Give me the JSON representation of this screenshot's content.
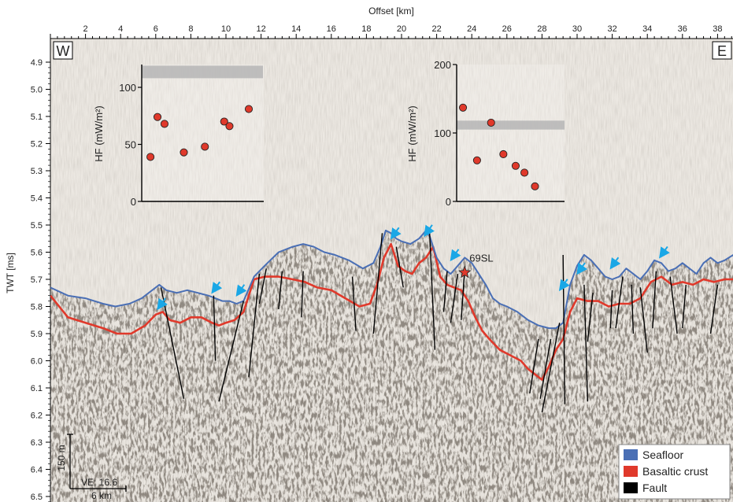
{
  "chart_data": [
    {
      "type": "line",
      "title": "",
      "xlabel": "Offset [km]",
      "ylabel": "TWT [ms]",
      "xlim": [
        0,
        38.9
      ],
      "ylim": [
        4.85,
        6.55
      ],
      "y_inverted": true,
      "x_ticks": [
        2,
        4,
        6,
        8,
        10,
        12,
        14,
        16,
        18,
        20,
        22,
        24,
        26,
        28,
        30,
        32,
        34,
        36,
        38
      ],
      "y_ticks": [
        "4.9",
        "5.0",
        "5.1",
        "5.2",
        "5.3",
        "5.4",
        "5.5",
        "5.6",
        "5.7",
        "5.8",
        "5.9",
        "6.0",
        "6.1",
        "6.2",
        "6.3",
        "6.4",
        "6.5"
      ],
      "corner_labels": {
        "west": "W",
        "east": "E"
      },
      "legend": {
        "position": "bottom-right",
        "entries": [
          {
            "label": "Seafloor",
            "color": "#4a6fb5"
          },
          {
            "label": "Basaltic crust",
            "color": "#e0392b"
          },
          {
            "label": "Fault",
            "color": "#000000"
          }
        ]
      },
      "series": [
        {
          "name": "Seafloor",
          "color": "#4a6fb5",
          "x": [
            0,
            1,
            2,
            3,
            3.7,
            4.5,
            5.2,
            5.8,
            6.2,
            6.6,
            7.2,
            7.8,
            8.4,
            9.0,
            9.4,
            9.8,
            10.2,
            10.6,
            11.0,
            11.6,
            12.2,
            13.0,
            13.8,
            14.4,
            15.0,
            15.6,
            16.2,
            17.0,
            17.8,
            18.4,
            18.8,
            19.1,
            19.4,
            19.7,
            20.0,
            20.5,
            21.0,
            21.4,
            21.6,
            22.0,
            22.4,
            22.8,
            23.2,
            23.6,
            24.0,
            24.4,
            24.8,
            25.2,
            25.6,
            26.0,
            26.6,
            27.2,
            27.8,
            28.4,
            28.8,
            29.2,
            29.6,
            30.0,
            30.4,
            30.8,
            31.2,
            31.6,
            32.0,
            32.4,
            32.8,
            33.2,
            33.6,
            34.0,
            34.4,
            34.8,
            35.2,
            35.6,
            36.0,
            36.4,
            36.8,
            37.2,
            37.6,
            38.0,
            38.4,
            38.9
          ],
          "y": [
            5.73,
            5.76,
            5.77,
            5.79,
            5.8,
            5.79,
            5.77,
            5.74,
            5.72,
            5.74,
            5.75,
            5.74,
            5.75,
            5.76,
            5.77,
            5.78,
            5.78,
            5.79,
            5.78,
            5.69,
            5.65,
            5.6,
            5.58,
            5.57,
            5.58,
            5.6,
            5.61,
            5.63,
            5.66,
            5.64,
            5.58,
            5.52,
            5.53,
            5.55,
            5.56,
            5.57,
            5.55,
            5.52,
            5.54,
            5.62,
            5.66,
            5.68,
            5.65,
            5.62,
            5.64,
            5.68,
            5.72,
            5.77,
            5.79,
            5.8,
            5.82,
            5.85,
            5.87,
            5.88,
            5.88,
            5.86,
            5.72,
            5.65,
            5.61,
            5.63,
            5.66,
            5.69,
            5.7,
            5.69,
            5.66,
            5.68,
            5.7,
            5.67,
            5.63,
            5.64,
            5.67,
            5.66,
            5.64,
            5.66,
            5.68,
            5.64,
            5.62,
            5.64,
            5.63,
            5.61
          ]
        },
        {
          "name": "Basaltic crust",
          "color": "#e0392b",
          "x": [
            0,
            1,
            2,
            3,
            3.8,
            4.6,
            5.4,
            6.0,
            6.4,
            6.8,
            7.4,
            8.0,
            8.6,
            9.2,
            9.6,
            10.0,
            10.5,
            11.0,
            11.6,
            12.2,
            13.0,
            13.8,
            14.5,
            15.2,
            16.0,
            16.8,
            17.6,
            18.2,
            18.6,
            19.0,
            19.4,
            19.8,
            20.2,
            20.6,
            21.0,
            21.4,
            21.8,
            22.2,
            22.6,
            23.0,
            23.4,
            23.8,
            24.2,
            24.6,
            25.0,
            25.6,
            26.2,
            26.8,
            27.2,
            27.6,
            28.0,
            28.4,
            28.8,
            29.2,
            29.6,
            30.0,
            30.6,
            31.2,
            31.8,
            32.4,
            33.0,
            33.6,
            34.2,
            34.8,
            35.4,
            36.0,
            36.6,
            37.2,
            37.8,
            38.4,
            38.9
          ],
          "y": [
            5.76,
            5.84,
            5.86,
            5.88,
            5.9,
            5.9,
            5.87,
            5.83,
            5.82,
            5.85,
            5.86,
            5.84,
            5.84,
            5.86,
            5.87,
            5.86,
            5.85,
            5.82,
            5.7,
            5.69,
            5.69,
            5.7,
            5.71,
            5.73,
            5.74,
            5.77,
            5.8,
            5.79,
            5.72,
            5.62,
            5.57,
            5.65,
            5.67,
            5.68,
            5.64,
            5.62,
            5.58,
            5.69,
            5.72,
            5.73,
            5.74,
            5.78,
            5.84,
            5.89,
            5.92,
            5.96,
            5.98,
            6.0,
            6.03,
            6.05,
            6.07,
            6.02,
            5.96,
            5.92,
            5.82,
            5.77,
            5.78,
            5.78,
            5.8,
            5.79,
            5.79,
            5.77,
            5.71,
            5.69,
            5.72,
            5.71,
            5.72,
            5.7,
            5.71,
            5.7,
            5.7
          ]
        }
      ],
      "faults": [
        {
          "x": [
            6.3,
            7.6
          ],
          "y": [
            5.73,
            6.14
          ]
        },
        {
          "x": [
            9.3,
            9.4
          ],
          "y": [
            5.76,
            6.0
          ]
        },
        {
          "x": [
            11.0,
            9.6
          ],
          "y": [
            5.78,
            6.15
          ]
        },
        {
          "x": [
            11.9,
            11.3
          ],
          "y": [
            5.68,
            6.06
          ]
        },
        {
          "x": [
            12.3,
            11.9
          ],
          "y": [
            5.66,
            5.79
          ]
        },
        {
          "x": [
            13.2,
            13.0
          ],
          "y": [
            5.67,
            5.81
          ]
        },
        {
          "x": [
            14.4,
            14.3
          ],
          "y": [
            5.67,
            5.84
          ]
        },
        {
          "x": [
            17.2,
            17.4
          ],
          "y": [
            5.69,
            5.89
          ]
        },
        {
          "x": [
            18.9,
            18.4
          ],
          "y": [
            5.53,
            5.9
          ]
        },
        {
          "x": [
            19.7,
            20.1
          ],
          "y": [
            5.58,
            5.73
          ]
        },
        {
          "x": [
            21.6,
            21.9
          ],
          "y": [
            5.53,
            5.96
          ]
        },
        {
          "x": [
            22.6,
            22.4
          ],
          "y": [
            5.67,
            5.82
          ]
        },
        {
          "x": [
            23.2,
            22.8
          ],
          "y": [
            5.68,
            5.86
          ]
        },
        {
          "x": [
            23.6,
            23.4
          ],
          "y": [
            5.66,
            5.85
          ]
        },
        {
          "x": [
            27.8,
            27.3
          ],
          "y": [
            5.92,
            6.12
          ]
        },
        {
          "x": [
            28.5,
            27.9
          ],
          "y": [
            5.92,
            6.14
          ]
        },
        {
          "x": [
            29.0,
            28.0
          ],
          "y": [
            5.86,
            6.19
          ]
        },
        {
          "x": [
            29.2,
            29.3
          ],
          "y": [
            5.61,
            6.16
          ]
        },
        {
          "x": [
            30.4,
            30.6
          ],
          "y": [
            5.72,
            6.15
          ]
        },
        {
          "x": [
            30.9,
            30.6
          ],
          "y": [
            5.75,
            5.93
          ]
        },
        {
          "x": [
            32.0,
            31.9
          ],
          "y": [
            5.74,
            5.88
          ]
        },
        {
          "x": [
            32.6,
            32.2
          ],
          "y": [
            5.69,
            5.88
          ]
        },
        {
          "x": [
            33.1,
            33.2
          ],
          "y": [
            5.72,
            5.9
          ]
        },
        {
          "x": [
            33.6,
            34.0
          ],
          "y": [
            5.73,
            5.97
          ]
        },
        {
          "x": [
            34.5,
            34.3
          ],
          "y": [
            5.67,
            5.88
          ]
        },
        {
          "x": [
            35.3,
            35.7
          ],
          "y": [
            5.69,
            5.9
          ]
        },
        {
          "x": [
            36.2,
            36.0
          ],
          "y": [
            5.72,
            5.88
          ]
        },
        {
          "x": [
            38.0,
            37.6
          ],
          "y": [
            5.72,
            5.9
          ]
        }
      ],
      "arrows": [
        {
          "x": 6.1,
          "y": 5.81
        },
        {
          "x": 9.2,
          "y": 5.75
        },
        {
          "x": 10.6,
          "y": 5.76
        },
        {
          "x": 19.4,
          "y": 5.55
        },
        {
          "x": 21.3,
          "y": 5.54
        },
        {
          "x": 22.8,
          "y": 5.63
        },
        {
          "x": 29.0,
          "y": 5.74
        },
        {
          "x": 30.0,
          "y": 5.68
        },
        {
          "x": 31.9,
          "y": 5.66
        },
        {
          "x": 34.7,
          "y": 5.62
        }
      ],
      "annotations": [
        {
          "text": "69SL",
          "x": 23.6,
          "y": 5.675
        }
      ],
      "scale_bar": {
        "vertical_label": "150 m",
        "horizontal_label": "6 km",
        "ve_label": "VE: 16.6"
      }
    },
    {
      "type": "scatter",
      "title": "",
      "xlabel": "",
      "ylabel": "HF (mW/m²)",
      "ylim": [
        0,
        120
      ],
      "y_ticks": [
        0,
        50,
        100
      ],
      "x_axis": "Offset [km]",
      "points": [
        {
          "x": 5.7,
          "y": 39
        },
        {
          "x": 6.1,
          "y": 74
        },
        {
          "x": 6.5,
          "y": 68
        },
        {
          "x": 7.6,
          "y": 43
        },
        {
          "x": 8.8,
          "y": 48
        },
        {
          "x": 9.9,
          "y": 70
        },
        {
          "x": 10.2,
          "y": 66
        },
        {
          "x": 11.3,
          "y": 81
        }
      ],
      "shaded_band": {
        "y_from": 108,
        "y_to": 119
      }
    },
    {
      "type": "scatter",
      "title": "",
      "xlabel": "",
      "ylabel": "HF (mW/m²)",
      "ylim": [
        0,
        200
      ],
      "y_ticks": [
        0,
        100,
        200
      ],
      "x_axis": "Offset [km]",
      "points": [
        {
          "x": 23.5,
          "y": 137
        },
        {
          "x": 24.3,
          "y": 60
        },
        {
          "x": 25.1,
          "y": 115
        },
        {
          "x": 25.8,
          "y": 69
        },
        {
          "x": 26.5,
          "y": 52
        },
        {
          "x": 27.0,
          "y": 42
        },
        {
          "x": 27.6,
          "y": 22
        }
      ],
      "shaded_band": {
        "y_from": 105,
        "y_to": 118
      }
    }
  ]
}
